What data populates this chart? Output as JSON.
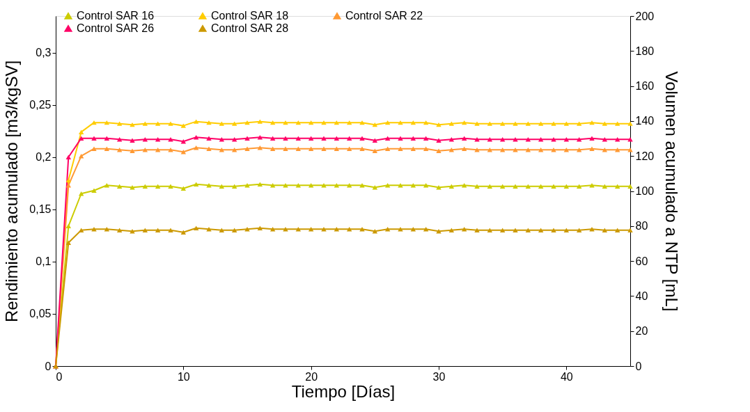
{
  "chart_data": {
    "type": "line",
    "xlabel": "Tiempo [Días]",
    "ylabel": "Rendimiento acumulado [m3/kgSV]",
    "y2label": "Volumen acumulado a NTP [mL]",
    "x": [
      0,
      1,
      2,
      3,
      4,
      5,
      6,
      7,
      8,
      9,
      10,
      11,
      12,
      13,
      14,
      15,
      16,
      17,
      18,
      19,
      20,
      21,
      22,
      23,
      24,
      25,
      26,
      27,
      28,
      29,
      30,
      31,
      32,
      33,
      34,
      35,
      36,
      37,
      38,
      39,
      40,
      41,
      42,
      43,
      44,
      45
    ],
    "series": [
      {
        "name": "Control SAR 16",
        "color": "#cccc00",
        "values": [
          0,
          0.134,
          0.165,
          0.168,
          0.173,
          0.172,
          0.171,
          0.172,
          0.172,
          0.172,
          0.17,
          0.174,
          0.173,
          0.172,
          0.172,
          0.173,
          0.174,
          0.173,
          0.173,
          0.173,
          0.173,
          0.173,
          0.173,
          0.173,
          0.173,
          0.171,
          0.173,
          0.173,
          0.173,
          0.173,
          0.171,
          0.172,
          0.173,
          0.172,
          0.172,
          0.172,
          0.172,
          0.172,
          0.172,
          0.172,
          0.172,
          0.172,
          0.173,
          0.172,
          0.172,
          0.172
        ]
      },
      {
        "name": "Control SAR 18",
        "color": "#ffcc00",
        "values": [
          0,
          0.178,
          0.224,
          0.233,
          0.233,
          0.232,
          0.231,
          0.232,
          0.232,
          0.232,
          0.23,
          0.234,
          0.233,
          0.232,
          0.232,
          0.233,
          0.234,
          0.233,
          0.233,
          0.233,
          0.233,
          0.233,
          0.233,
          0.233,
          0.233,
          0.231,
          0.233,
          0.233,
          0.233,
          0.233,
          0.231,
          0.232,
          0.233,
          0.232,
          0.232,
          0.232,
          0.232,
          0.232,
          0.232,
          0.232,
          0.232,
          0.232,
          0.233,
          0.232,
          0.232,
          0.232
        ]
      },
      {
        "name": "Control SAR 22",
        "color": "#ff9933",
        "values": [
          0,
          0.173,
          0.201,
          0.208,
          0.208,
          0.207,
          0.206,
          0.207,
          0.207,
          0.207,
          0.205,
          0.209,
          0.208,
          0.207,
          0.207,
          0.208,
          0.209,
          0.208,
          0.208,
          0.208,
          0.208,
          0.208,
          0.208,
          0.208,
          0.208,
          0.206,
          0.208,
          0.208,
          0.208,
          0.208,
          0.206,
          0.207,
          0.208,
          0.207,
          0.207,
          0.207,
          0.207,
          0.207,
          0.207,
          0.207,
          0.207,
          0.207,
          0.208,
          0.207,
          0.207,
          0.207
        ]
      },
      {
        "name": "Control SAR 26",
        "color": "#ff0066",
        "values": [
          0,
          0.2,
          0.218,
          0.218,
          0.218,
          0.217,
          0.216,
          0.217,
          0.217,
          0.217,
          0.215,
          0.219,
          0.218,
          0.217,
          0.217,
          0.218,
          0.219,
          0.218,
          0.218,
          0.218,
          0.218,
          0.218,
          0.218,
          0.218,
          0.218,
          0.216,
          0.218,
          0.218,
          0.218,
          0.218,
          0.216,
          0.217,
          0.218,
          0.217,
          0.217,
          0.217,
          0.217,
          0.217,
          0.217,
          0.217,
          0.217,
          0.217,
          0.218,
          0.217,
          0.217,
          0.217
        ]
      },
      {
        "name": "Control SAR 28",
        "color": "#cc9900",
        "values": [
          0,
          0.118,
          0.13,
          0.131,
          0.131,
          0.13,
          0.129,
          0.13,
          0.13,
          0.13,
          0.128,
          0.132,
          0.131,
          0.13,
          0.13,
          0.131,
          0.132,
          0.131,
          0.131,
          0.131,
          0.131,
          0.131,
          0.131,
          0.131,
          0.131,
          0.129,
          0.131,
          0.131,
          0.131,
          0.131,
          0.129,
          0.13,
          0.131,
          0.13,
          0.13,
          0.13,
          0.13,
          0.13,
          0.13,
          0.13,
          0.13,
          0.13,
          0.131,
          0.13,
          0.13,
          0.13
        ]
      }
    ],
    "xlim": [
      0,
      45
    ],
    "xticks": [
      0,
      10,
      20,
      30,
      40
    ],
    "ylim": [
      0,
      0.335
    ],
    "yticks": [
      0,
      {
        "value": 0.05,
        "label": "0,05"
      },
      {
        "value": 0.1,
        "label": "0,1"
      },
      {
        "value": 0.15,
        "label": "0,15"
      },
      {
        "value": 0.2,
        "label": "0,2"
      },
      {
        "value": 0.25,
        "label": "0,25"
      },
      {
        "value": 0.3,
        "label": "0,3"
      }
    ],
    "y2lim": [
      0,
      200
    ],
    "y2ticks": [
      0,
      20,
      40,
      60,
      80,
      100,
      120,
      140,
      160,
      180,
      200
    ],
    "marker": "triangle",
    "line_style": "solid",
    "grid": false,
    "legend": "top"
  }
}
